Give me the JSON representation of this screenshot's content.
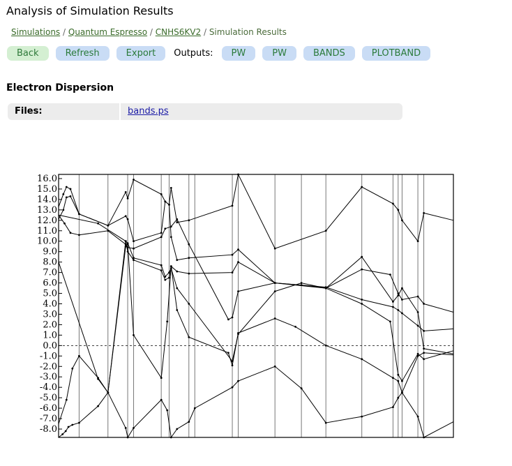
{
  "header": {
    "title": "Analysis of Simulation Results"
  },
  "breadcrumb": {
    "items": [
      "Simulations",
      "Quantum Espresso",
      "CNHS6KV2"
    ],
    "separator": "/",
    "current": "Simulation Results"
  },
  "toolbar": {
    "back_label": "Back",
    "refresh_label": "Refresh",
    "export_label": "Export",
    "outputs_label": "Outputs:",
    "outputs": [
      "PW",
      "PW",
      "BANDS",
      "PLOTBAND"
    ]
  },
  "section": {
    "title": "Electron Dispersion",
    "files_label": "Files:",
    "file_link": "bands.ps"
  },
  "chart_data": {
    "type": "line",
    "title": "",
    "xlabel": "",
    "ylabel": "",
    "ylim": [
      -8.8,
      16.4
    ],
    "yticks": [
      "16.0",
      "15.0",
      "14.0",
      "13.0",
      "12.0",
      "11.0",
      "10.0",
      "9.0",
      "8.0",
      "7.0",
      "6.0",
      "5.0",
      "4.0",
      "3.0",
      "2.0",
      "1.0",
      "0.0",
      "-1.0",
      "-2.0",
      "-3.0",
      "-4.0",
      "-5.0",
      "-6.0",
      "-7.0",
      "-8.0"
    ],
    "fermi_level": 0.0,
    "kpoint_dividers": [
      0,
      5.2,
      12.5,
      17.5,
      19.0,
      26.0,
      28.0,
      33.0,
      34.5,
      44.0,
      45.5,
      54.8,
      61.5,
      67.7,
      76.8,
      84.7,
      86.0,
      87.0,
      91.0,
      92.5,
      100
    ],
    "series": [
      {
        "x": [
          0,
          1,
          1.8,
          2.5,
          3.5,
          5.2,
          10,
          12.5,
          17,
          17.5,
          19,
          26,
          27.5,
          28.5,
          30,
          33,
          34.5,
          44,
          45.5,
          54.8,
          61.5,
          67.7,
          76.8,
          84.7,
          86,
          87,
          91,
          92.5,
          100
        ],
        "values": [
          -8.8,
          -8.5,
          -8.2,
          -7.8,
          -7.6,
          -7.4,
          -5.8,
          -4.5,
          -7.9,
          -8.8,
          -7.9,
          -5.2,
          -6.2,
          -8.8,
          -8.0,
          -7.3,
          -6.0,
          -4.0,
          -3.4,
          -2.0,
          -4.1,
          -7.4,
          -6.8,
          -5.9,
          -5.0,
          -4.5,
          -6.8,
          -8.8,
          -7.3
        ]
      },
      {
        "x": [
          0,
          2,
          3.5,
          5.2,
          10,
          12.5,
          17,
          17.5,
          19,
          26,
          27.5,
          28.5,
          30,
          33,
          43,
          44,
          45.5,
          54.8,
          60,
          67.7,
          76.8,
          84.7,
          86,
          87,
          91,
          92.5,
          100
        ],
        "values": [
          -7.5,
          -5.2,
          -2.2,
          -1.0,
          -3.1,
          -4.5,
          9.5,
          9.7,
          1.0,
          -3.1,
          2.3,
          7.6,
          3.4,
          0.8,
          -0.7,
          -1.9,
          1.2,
          2.6,
          1.8,
          0.0,
          -1.3,
          -3.1,
          -3.4,
          -4.5,
          -1.0,
          -0.7,
          -0.9
        ]
      },
      {
        "x": [
          0,
          1.5,
          3,
          5.2,
          12.5,
          17,
          17.5,
          19,
          26,
          27,
          28.5,
          30,
          33,
          43,
          44,
          45.5,
          54.8,
          67.7,
          76.8,
          84,
          86,
          87,
          91,
          92.5,
          100
        ],
        "values": [
          12.5,
          11.7,
          10.8,
          10.6,
          11.0,
          9.7,
          9.4,
          9.3,
          10.4,
          11.2,
          11.4,
          12.1,
          9.7,
          2.5,
          2.7,
          5.2,
          6.0,
          5.5,
          4.0,
          2.3,
          -2.8,
          -3.4,
          -0.8,
          -1.3,
          -0.5
        ]
      },
      {
        "x": [
          0,
          1.2,
          2,
          3,
          5.2,
          12.5,
          17,
          17.5,
          19,
          26,
          27,
          28,
          28.5,
          30,
          33,
          44,
          45.5,
          54.8,
          67.7,
          76.8,
          84.7,
          86,
          87,
          91,
          92.5,
          100
        ],
        "values": [
          12.1,
          13.0,
          14.2,
          14.3,
          12.6,
          11.5,
          12.4,
          12.1,
          10.0,
          10.8,
          13.8,
          13.5,
          10.4,
          8.2,
          8.4,
          8.7,
          9.2,
          6.0,
          5.6,
          4.4,
          3.7,
          3.4,
          3.1,
          1.9,
          1.4,
          1.6
        ]
      },
      {
        "x": [
          0,
          1.2,
          2,
          3,
          5.2,
          12.5,
          17,
          17.5,
          19,
          26,
          27,
          28,
          28.5,
          30,
          33,
          44,
          45.5,
          54.8,
          67.7,
          76.8,
          84.7,
          86,
          87,
          91,
          92.5,
          100
        ],
        "values": [
          13.3,
          14.5,
          15.2,
          15.0,
          12.6,
          11.5,
          14.7,
          14.1,
          15.9,
          14.5,
          13.8,
          13.5,
          15.1,
          11.8,
          12.0,
          13.4,
          16.4,
          9.3,
          11.0,
          15.2,
          13.6,
          13.0,
          12.0,
          10.0,
          12.7,
          12.0
        ]
      },
      {
        "x": [
          0,
          10,
          17,
          17.5,
          19,
          26,
          27,
          28,
          28.5,
          30,
          33,
          44,
          45.5,
          54.8,
          61.5,
          67.7,
          76.8,
          84,
          86,
          87,
          91,
          92.5,
          100
        ],
        "values": [
          12.5,
          11.7,
          10.0,
          9.8,
          8.4,
          7.7,
          6.6,
          7.0,
          7.4,
          5.5,
          4.0,
          -1.5,
          1.1,
          5.2,
          6.0,
          5.5,
          7.3,
          6.8,
          5.0,
          4.4,
          4.7,
          4.0,
          3.2
        ]
      },
      {
        "x": [
          0,
          10,
          12.5,
          17,
          17.5,
          19,
          26,
          27,
          28,
          28.5,
          30,
          33,
          44,
          45.5,
          54.8,
          61.5,
          67.7,
          76.8,
          84.7,
          86,
          87,
          91,
          92.5,
          100
        ],
        "values": [
          8.0,
          -3.2,
          -4.5,
          10.0,
          9.0,
          8.2,
          7.2,
          6.3,
          6.5,
          7.6,
          7.1,
          6.9,
          7.0,
          8.0,
          6.0,
          5.8,
          5.5,
          8.5,
          4.2,
          4.8,
          5.5,
          3.2,
          -0.3,
          -0.8
        ]
      }
    ]
  }
}
